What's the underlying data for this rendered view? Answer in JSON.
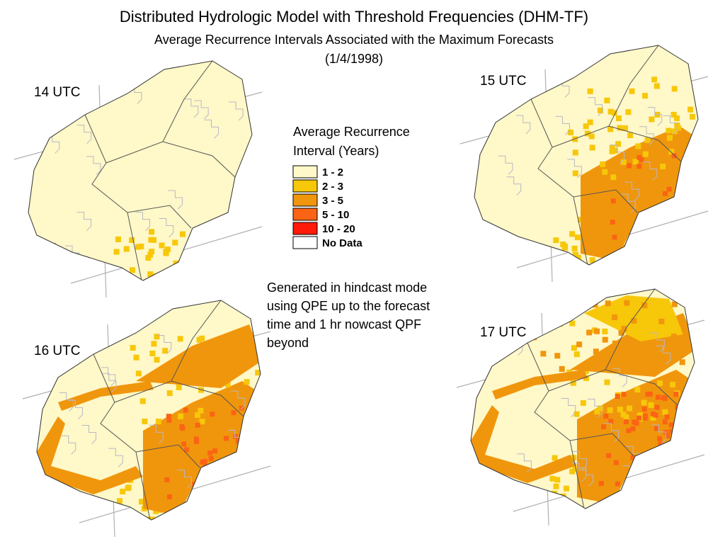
{
  "header": {
    "title": "Distributed Hydrologic Model with Threshold Frequencies (DHM-TF)",
    "subtitle": "Average Recurrence Intervals Associated with the Maximum Forecasts",
    "date": "(1/4/1998)"
  },
  "panels": [
    {
      "label": "14 UTC"
    },
    {
      "label": "15 UTC"
    },
    {
      "label": "16 UTC"
    },
    {
      "label": "17 UTC"
    }
  ],
  "legend": {
    "title": [
      "Average Recurrence",
      "Interval (Years)"
    ],
    "items": [
      {
        "label": "1 - 2",
        "color": "#fff8c8"
      },
      {
        "label": "2 - 3",
        "color": "#f7c70a"
      },
      {
        "label": "3 - 5",
        "color": "#f0960c"
      },
      {
        "label": "5 - 10",
        "color": "#fb6414"
      },
      {
        "label": "10 - 20",
        "color": "#ff1a0a"
      },
      {
        "label": "No Data",
        "color": "#ffffff"
      }
    ]
  },
  "note": [
    "Generated in hindcast mode",
    "using QPE up to the forecast",
    "time and 1 hr nowcast QPF",
    "beyond"
  ]
}
